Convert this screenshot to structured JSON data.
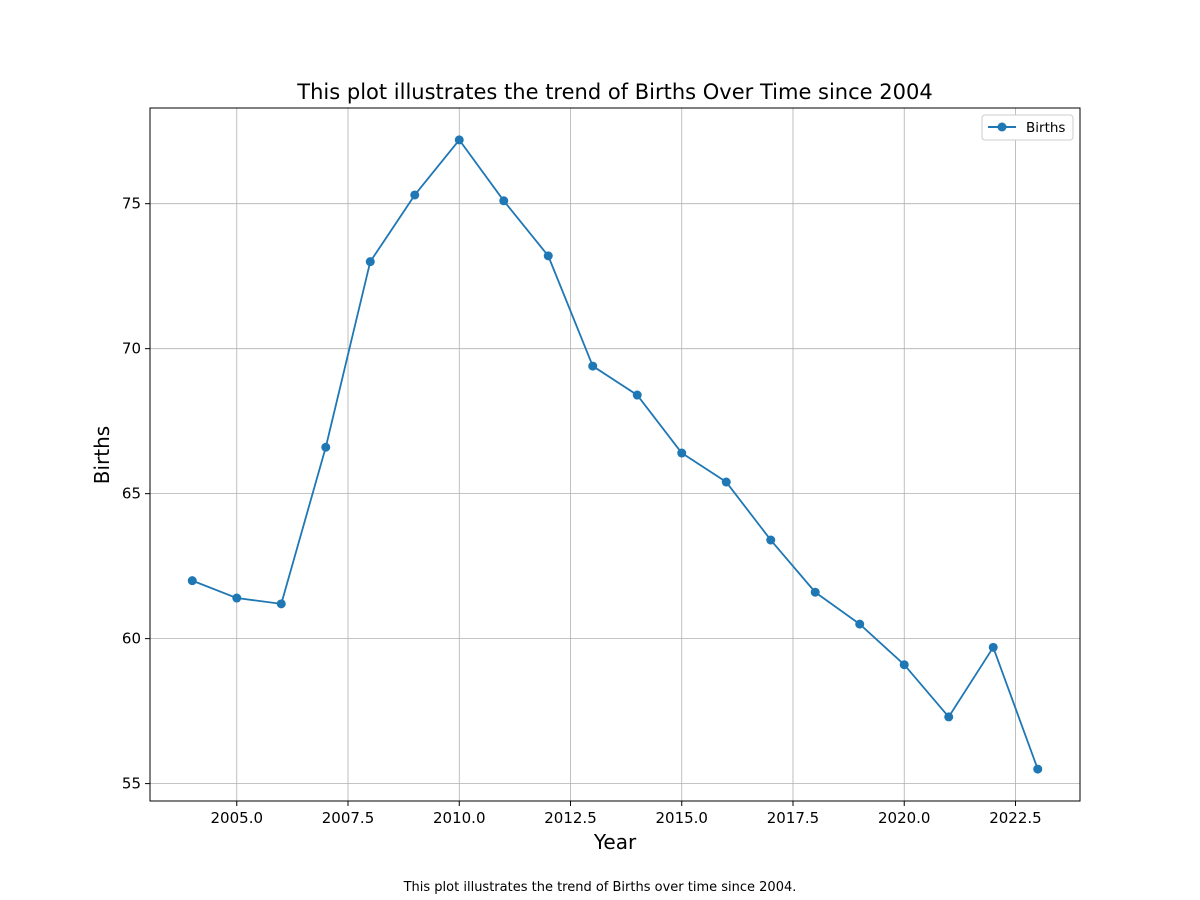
{
  "chart_data": {
    "type": "line",
    "title": "This plot illustrates the trend of Births Over Time since 2004",
    "xlabel": "Year",
    "ylabel": "Births",
    "caption": "This plot illustrates the trend of Births over time since 2004.",
    "x": [
      2004,
      2005,
      2006,
      2007,
      2008,
      2009,
      2010,
      2011,
      2012,
      2013,
      2014,
      2015,
      2016,
      2017,
      2018,
      2019,
      2020,
      2021,
      2022,
      2023
    ],
    "series": [
      {
        "name": "Births",
        "color": "#1f77b4",
        "values": [
          62.0,
          61.4,
          61.2,
          66.6,
          73.0,
          75.3,
          77.2,
          75.1,
          73.2,
          69.4,
          68.4,
          66.4,
          65.4,
          63.4,
          61.6,
          60.5,
          59.1,
          57.3,
          59.7,
          55.5
        ]
      }
    ],
    "xlim": [
      2003.05,
      2023.95
    ],
    "ylim": [
      54.4,
      78.3
    ],
    "xticks": [
      "2005.0",
      "2007.5",
      "2010.0",
      "2012.5",
      "2015.0",
      "2017.5",
      "2020.0",
      "2022.5"
    ],
    "yticks": [
      "55",
      "60",
      "65",
      "70",
      "75"
    ],
    "grid": true,
    "legend_position": "top-right"
  }
}
